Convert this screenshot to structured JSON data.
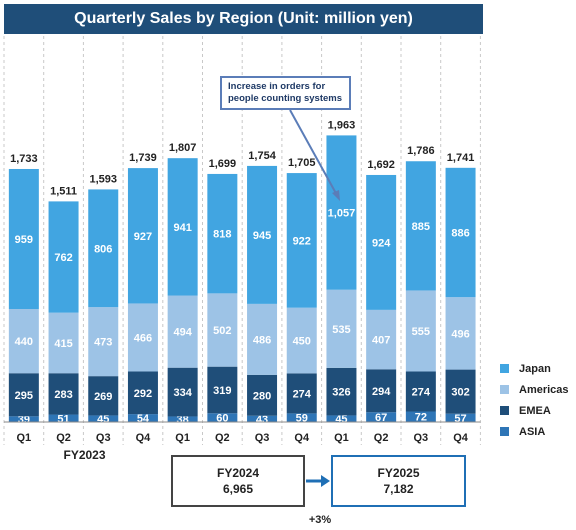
{
  "chart_data": {
    "type": "bar",
    "stacked": true,
    "title": "Quarterly Sales by Region (Unit: million yen)",
    "categories": [
      "Q1",
      "Q2",
      "Q3",
      "Q4",
      "Q1",
      "Q2",
      "Q3",
      "Q4",
      "Q1",
      "Q2",
      "Q3",
      "Q4"
    ],
    "fiscal_years": [
      "FY2023",
      "FY2023",
      "FY2023",
      "FY2023",
      "FY2024",
      "FY2024",
      "FY2024",
      "FY2024",
      "FY2025",
      "FY2025",
      "FY2025",
      "FY2025"
    ],
    "series": [
      {
        "name": "ASIA",
        "color": "#2e75b6",
        "values": [
          39,
          51,
          45,
          54,
          38,
          60,
          43,
          59,
          45,
          67,
          72,
          57
        ]
      },
      {
        "name": "EMEA",
        "color": "#1f4e79",
        "values": [
          295,
          283,
          269,
          292,
          334,
          319,
          280,
          274,
          326,
          294,
          274,
          302
        ]
      },
      {
        "name": "Americas",
        "color": "#9dc3e6",
        "values": [
          440,
          415,
          473,
          466,
          494,
          502,
          486,
          450,
          535,
          407,
          555,
          496
        ]
      },
      {
        "name": "Japan",
        "color": "#41a5e1",
        "values": [
          959,
          762,
          806,
          927,
          941,
          818,
          945,
          922,
          1057,
          924,
          885,
          886
        ]
      }
    ],
    "totals": [
      1733,
      1511,
      1593,
      1739,
      1807,
      1699,
      1754,
      1705,
      1963,
      1692,
      1786,
      1741
    ],
    "total_labels": [
      "1,733",
      "1,511",
      "1,593",
      "1,739",
      "1,807",
      "1,699",
      "1,754",
      "1,705",
      "1,963",
      "1,692",
      "1,786",
      "1,741"
    ],
    "segment_labels": {
      "ASIA": [
        "39",
        "51",
        "45",
        "54",
        "38",
        "60",
        "43",
        "59",
        "45",
        "67",
        "72",
        "57"
      ],
      "EMEA": [
        "295",
        "283",
        "269",
        "292",
        "334",
        "319",
        "280",
        "274",
        "326",
        "294",
        "274",
        "302"
      ],
      "Americas": [
        "440",
        "415",
        "473",
        "466",
        "494",
        "502",
        "486",
        "450",
        "535",
        "407",
        "555",
        "496"
      ],
      "Japan": [
        "959",
        "762",
        "806",
        "927",
        "941",
        "818",
        "945",
        "922",
        "1,057",
        "924",
        "885",
        "886"
      ]
    },
    "ylim": [
      0,
      2000
    ],
    "annotation": "Increase in orders for people counting systems",
    "legend": [
      "Japan",
      "Americas",
      "EMEA",
      "ASIA"
    ],
    "legend_position": "right"
  },
  "legend_colors": {
    "Japan": "#41a5e1",
    "Americas": "#9dc3e6",
    "EMEA": "#1f4e79",
    "ASIA": "#2e75b6"
  },
  "fy2023_label": "FY2023",
  "fy2024": {
    "label": "FY2024",
    "total": "6,965"
  },
  "fy2025": {
    "label": "FY2025",
    "total": "7,182"
  },
  "growth": "+3%"
}
